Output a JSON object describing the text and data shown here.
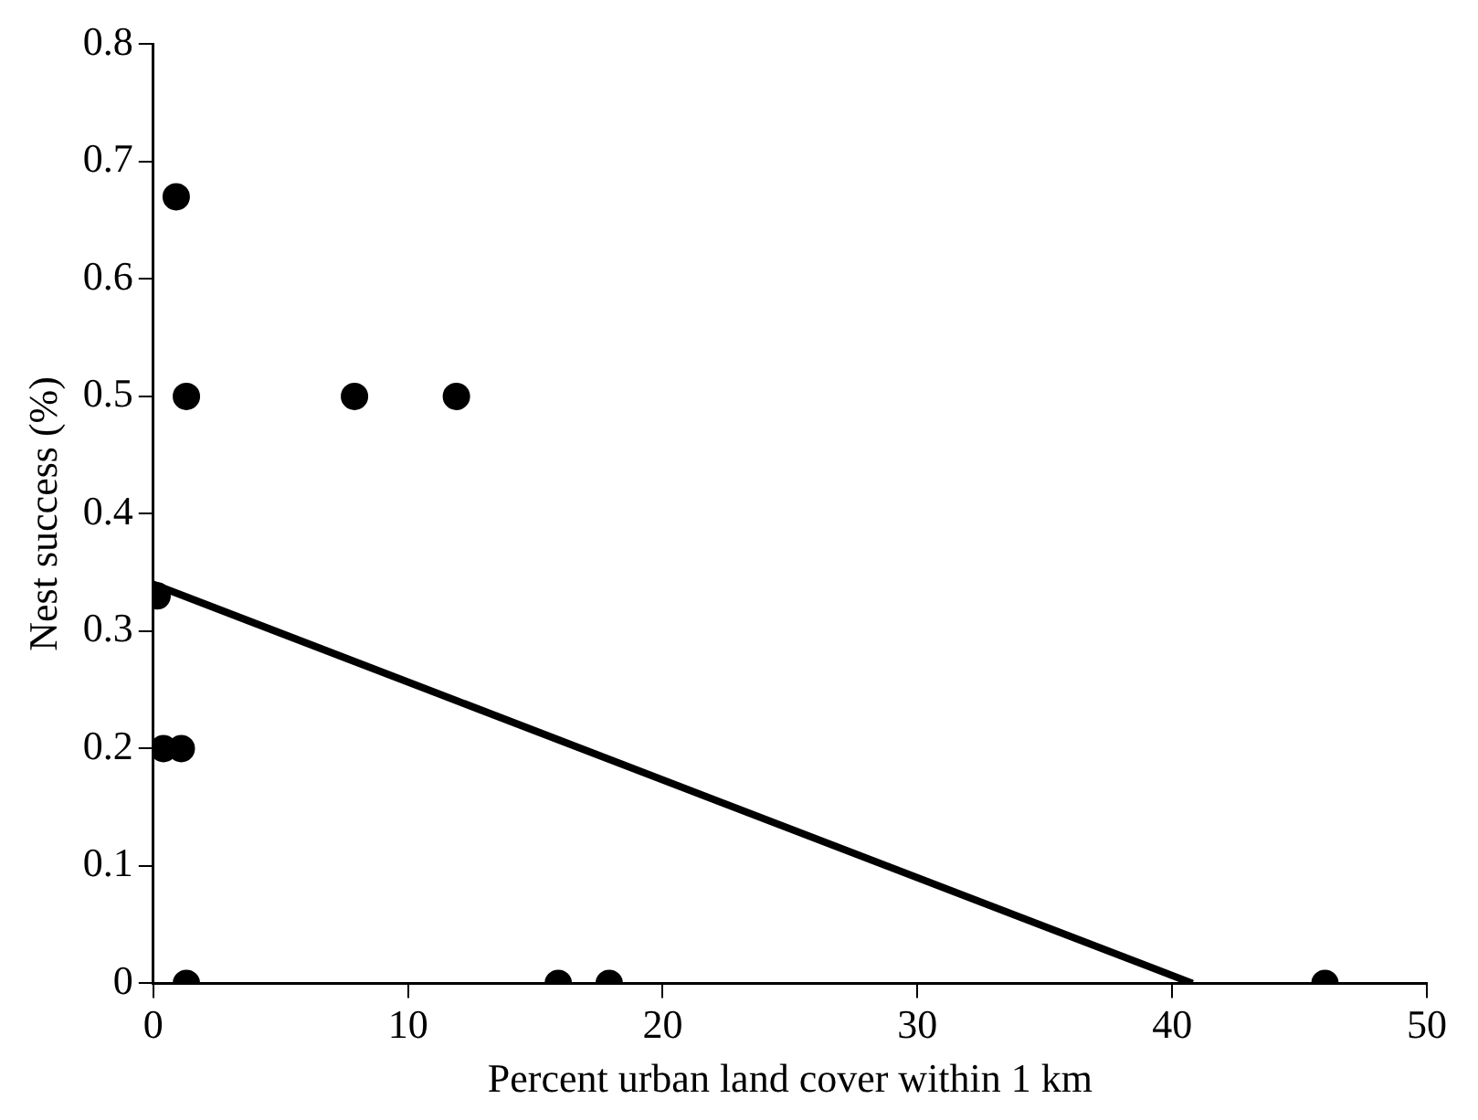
{
  "chart_data": {
    "type": "scatter",
    "xlabel": "Percent urban land cover within 1 km",
    "ylabel": "Nest success (%)",
    "xlim": [
      0,
      50
    ],
    "xticks": [
      0,
      10,
      20,
      30,
      40,
      50
    ],
    "ylim": [
      0,
      0.8
    ],
    "yticks": [
      0,
      0.1,
      0.2,
      0.3,
      0.4,
      0.5,
      0.6,
      0.7,
      0.8
    ],
    "grid": false,
    "series": [
      {
        "type": "scatter",
        "marker": "circle",
        "color": "#000000",
        "x": [
          0.9,
          1.3,
          7.9,
          11.9,
          0.15,
          0.4,
          1.1,
          1.3,
          15.9,
          17.9,
          46
        ],
        "values": [
          0.67,
          0.5,
          0.5,
          0.5,
          0.33,
          0.2,
          0.2,
          0,
          0,
          0,
          0
        ]
      },
      {
        "type": "line",
        "color": "#000000",
        "x": [
          0,
          40.8
        ],
        "values": [
          0.34,
          0
        ]
      }
    ]
  }
}
